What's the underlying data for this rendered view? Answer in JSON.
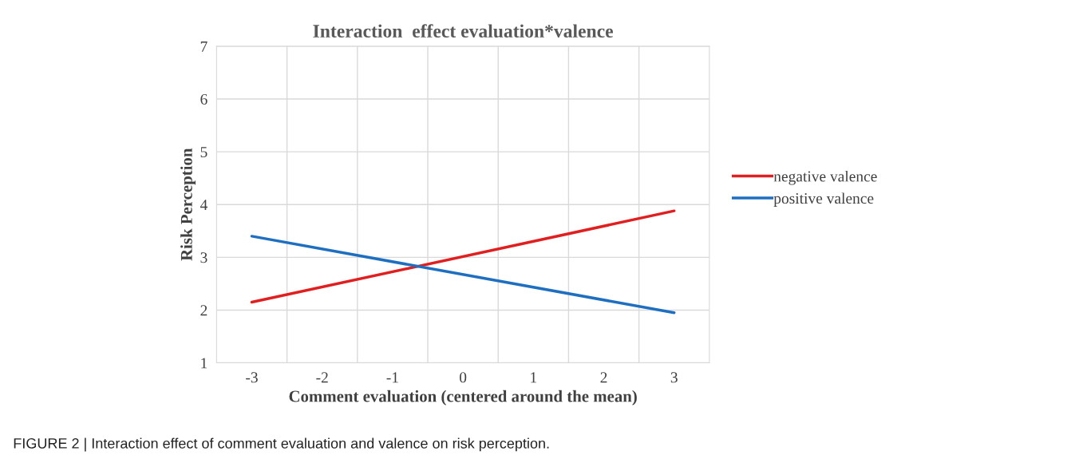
{
  "chart_data": {
    "type": "line",
    "title": "Interaction  effect evaluation*valence",
    "xlabel": "Comment evaluation (centered around the mean)",
    "ylabel": "Risk Perception",
    "x": [
      -3,
      3
    ],
    "series": [
      {
        "name": "negative valence",
        "color": "#e02020",
        "values": [
          2.15,
          3.88
        ]
      },
      {
        "name": "positive valence",
        "color": "#1f6fc0",
        "values": [
          3.4,
          1.95
        ]
      }
    ],
    "xlim": [
      -3.5,
      3.5
    ],
    "xticks": [
      -3,
      -2,
      -1,
      0,
      1,
      2,
      3
    ],
    "ylim": [
      1,
      7
    ],
    "yticks": [
      1,
      2,
      3,
      4,
      5,
      6,
      7
    ],
    "grid": true,
    "legend": "right",
    "marker": "none",
    "line_style": "solid",
    "annotations": [
      "FIGURE 2 | Interaction effect of comment evaluation and valence on risk perception."
    ]
  }
}
